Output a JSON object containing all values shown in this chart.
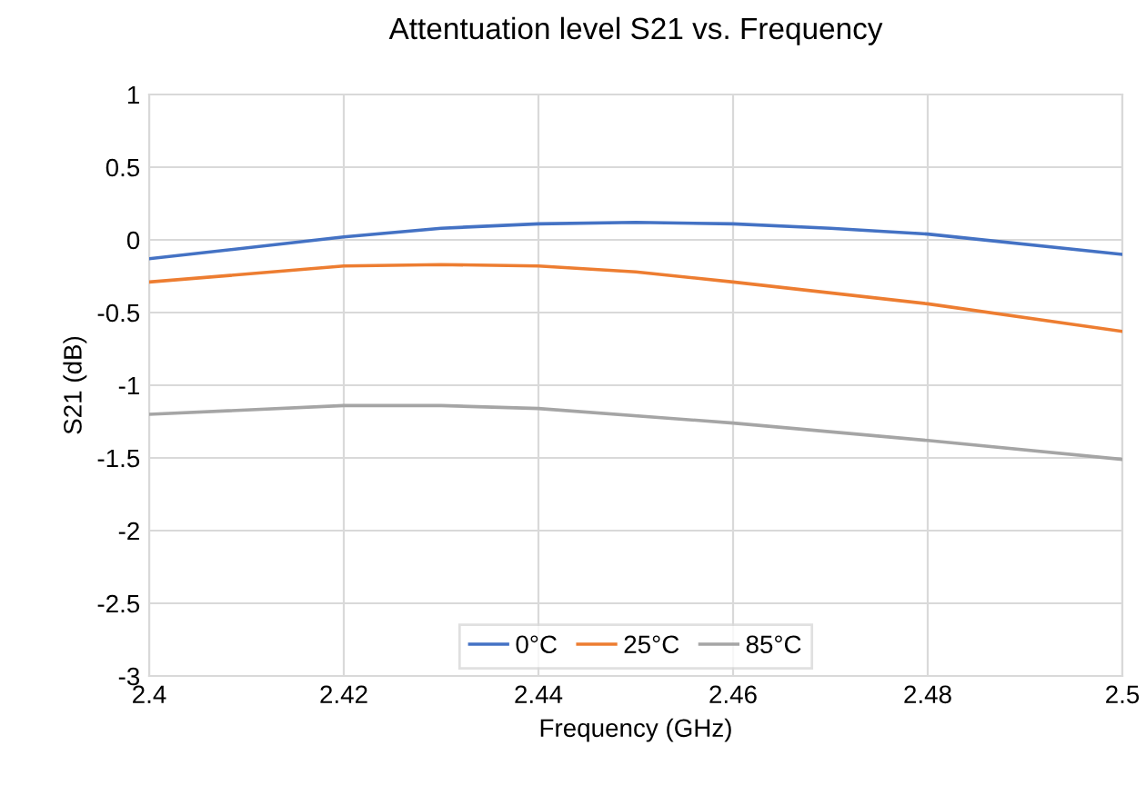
{
  "chart_data": {
    "type": "line",
    "title": "Attentuation level S21 vs. Frequency",
    "xlabel": "Frequency (GHz)",
    "ylabel": "S21 (dB)",
    "xlim": [
      2.4,
      2.5
    ],
    "xticks": [
      {
        "value": 2.4,
        "label": "2.4"
      },
      2.42,
      2.44,
      2.46,
      2.48,
      {
        "value": 2.5,
        "label": "2.5"
      }
    ],
    "ylim": [
      -3,
      1
    ],
    "yticks": [
      -3,
      -2.5,
      -2,
      -1.5,
      -1,
      -0.5,
      0,
      0.5,
      1
    ],
    "grid": true,
    "legend": "bottom",
    "marker": "none",
    "line_style": "solid",
    "series": [
      {
        "name": "0°C",
        "color": "#4472c4",
        "x": [
          2.4,
          2.42,
          2.43,
          2.44,
          2.45,
          2.46,
          2.47,
          2.48,
          2.5
        ],
        "values": [
          -0.13,
          0.02,
          0.08,
          0.11,
          0.12,
          0.11,
          0.08,
          0.04,
          -0.1
        ]
      },
      {
        "name": "25°C",
        "color": "#ed7d31",
        "x": [
          2.4,
          2.42,
          2.43,
          2.44,
          2.45,
          2.46,
          2.48,
          2.5
        ],
        "values": [
          -0.29,
          -0.18,
          -0.17,
          -0.18,
          -0.22,
          -0.29,
          -0.44,
          -0.63
        ]
      },
      {
        "name": "85°C",
        "color": "#a5a5a5",
        "x": [
          2.4,
          2.42,
          2.43,
          2.44,
          2.46,
          2.48,
          2.5
        ],
        "values": [
          -1.2,
          -1.14,
          -1.14,
          -1.16,
          -1.26,
          -1.38,
          -1.51
        ]
      }
    ]
  }
}
